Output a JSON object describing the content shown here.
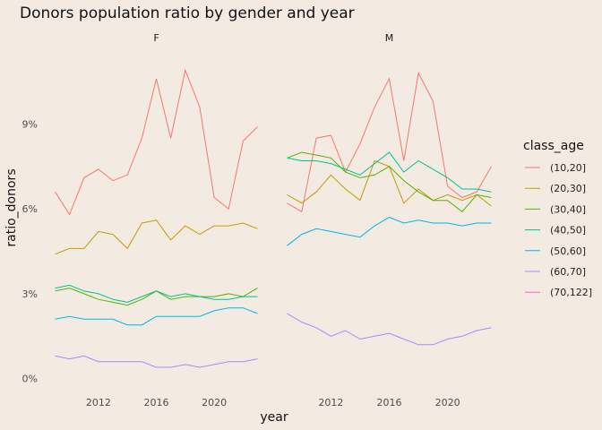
{
  "chart_data": {
    "type": "line",
    "title": "Donors population ratio by gender and year",
    "xlabel": "year",
    "ylabel": "ratio_donors",
    "facets": [
      "F",
      "M"
    ],
    "legend_title": "class_age",
    "legend_position": "right",
    "grid": false,
    "x": [
      2009,
      2010,
      2011,
      2012,
      2013,
      2014,
      2015,
      2016,
      2017,
      2018,
      2019,
      2020,
      2021,
      2022,
      2023
    ],
    "x_ticks": [
      2012,
      2016,
      2020
    ],
    "x_tick_labels": [
      "2012",
      "2016",
      "2020"
    ],
    "ylim": [
      -0.2,
      12.4
    ],
    "y_ticks": [
      0,
      3,
      6,
      9
    ],
    "y_tick_labels": [
      "0%",
      "3%",
      "6%",
      "9%"
    ],
    "series": [
      {
        "name": "(10,20]",
        "color": "#f8766d",
        "F": [
          6.6,
          5.8,
          7.1,
          7.4,
          7.0,
          7.2,
          8.5,
          10.6,
          8.5,
          10.9,
          9.6,
          6.4,
          6.0,
          8.4,
          8.9
        ],
        "M": [
          6.2,
          5.9,
          8.5,
          8.6,
          7.3,
          8.3,
          9.6,
          10.6,
          7.7,
          10.8,
          9.8,
          6.8,
          6.4,
          6.6,
          7.5
        ]
      },
      {
        "name": "(20,30]",
        "color": "#c49a00",
        "F": [
          4.4,
          4.6,
          4.6,
          5.2,
          5.1,
          4.6,
          5.5,
          5.6,
          4.9,
          5.4,
          5.1,
          5.4,
          5.4,
          5.5,
          5.3
        ],
        "M": [
          6.5,
          6.2,
          6.6,
          7.2,
          6.7,
          6.3,
          7.7,
          7.5,
          6.2,
          6.7,
          6.3,
          6.5,
          6.3,
          6.5,
          6.1
        ]
      },
      {
        "name": "(30,40]",
        "color": "#53b400",
        "F": [
          3.1,
          3.2,
          3.0,
          2.8,
          2.7,
          2.6,
          2.8,
          3.1,
          2.8,
          2.9,
          2.9,
          2.9,
          3.0,
          2.9,
          3.2
        ],
        "M": [
          7.8,
          8.0,
          7.9,
          7.8,
          7.3,
          7.1,
          7.2,
          7.5,
          7.0,
          6.6,
          6.3,
          6.3,
          5.9,
          6.5,
          6.4
        ]
      },
      {
        "name": "(40,50]",
        "color": "#00c094",
        "F": [
          3.2,
          3.3,
          3.1,
          3.0,
          2.8,
          2.7,
          2.9,
          3.1,
          2.9,
          3.0,
          2.9,
          2.8,
          2.8,
          2.9,
          2.9
        ],
        "M": [
          7.8,
          7.7,
          7.7,
          7.6,
          7.4,
          7.2,
          7.6,
          8.0,
          7.3,
          7.7,
          7.4,
          7.1,
          6.7,
          6.7,
          6.6
        ]
      },
      {
        "name": "(50,60]",
        "color": "#00b6eb",
        "F": [
          2.1,
          2.2,
          2.1,
          2.1,
          2.1,
          1.9,
          1.9,
          2.2,
          2.2,
          2.2,
          2.2,
          2.4,
          2.5,
          2.5,
          2.3
        ],
        "M": [
          4.7,
          5.1,
          5.3,
          5.2,
          5.1,
          5.0,
          5.4,
          5.7,
          5.5,
          5.6,
          5.5,
          5.5,
          5.4,
          5.5,
          5.5
        ]
      },
      {
        "name": "(60,70]",
        "color": "#a58aff",
        "F": [
          0.8,
          0.7,
          0.8,
          0.6,
          0.6,
          0.6,
          0.6,
          0.4,
          0.4,
          0.5,
          0.4,
          0.5,
          0.6,
          0.6,
          0.7
        ],
        "M": [
          2.3,
          2.0,
          1.8,
          1.5,
          1.7,
          1.4,
          1.5,
          1.6,
          1.4,
          1.2,
          1.2,
          1.4,
          1.5,
          1.7,
          1.8
        ]
      },
      {
        "name": "(70,122]",
        "color": "#fb61d7",
        "F": [],
        "M": []
      }
    ]
  }
}
